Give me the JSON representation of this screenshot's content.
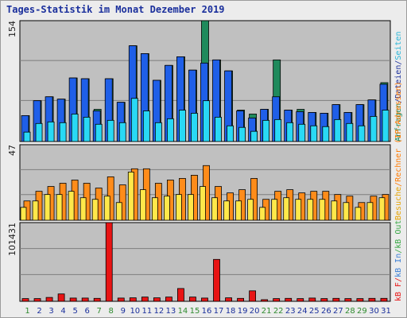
{
  "title": "Tages-Statistik im Monat Dezember 2019",
  "colors": {
    "background": "#ececec",
    "plot_bg": "#c0c0c0",
    "title": "#1a2f9c",
    "weekend_label": "#2e8b2e",
    "weekday_label": "#1a2f9c",
    "anfragen": "#1f8a5c",
    "dateien": "#1f5fe8",
    "seiten": "#29d9f5",
    "rechner": "#ff8c1a",
    "besuche": "#ffe84a",
    "kb_in": "#3b7fd6",
    "kb_out": "#39a845",
    "kb_f": "#e81414"
  },
  "right_labels": {
    "top": [
      {
        "text": "Anfragen",
        "color": "#1f8a5c"
      },
      {
        "text": "/",
        "color": "#1a2f9c"
      },
      {
        "text": "Dateien",
        "color": "#1a2f9c"
      },
      {
        "text": "/",
        "color": "#1a2f9c"
      },
      {
        "text": "Seiten",
        "color": "#29b6d9"
      }
    ],
    "middle": [
      {
        "text": "Besuche",
        "color": "#e6a300"
      },
      {
        "text": "/",
        "color": "#ff7a00"
      },
      {
        "text": "Rechner (IP-Adressen)",
        "color": "#ff7a00"
      }
    ],
    "bottom": [
      {
        "text": "kB F",
        "color": "#e81414"
      },
      {
        "text": "/",
        "color": "#e81414"
      },
      {
        "text": "kB In",
        "color": "#3b7fd6"
      },
      {
        "text": "/",
        "color": "#39a845"
      },
      {
        "text": "kB Out",
        "color": "#39a845"
      }
    ]
  },
  "chart_data": [
    {
      "type": "bar",
      "title": "Tages-Statistik im Monat Dezember 2019",
      "ylabel": "154",
      "ylim": [
        0,
        154
      ],
      "categories": [
        "1",
        "2",
        "3",
        "4",
        "5",
        "6",
        "7",
        "8",
        "9",
        "10",
        "11",
        "12",
        "13",
        "14",
        "15",
        "16",
        "17",
        "18",
        "19",
        "20",
        "21",
        "22",
        "23",
        "24",
        "25",
        "26",
        "27",
        "28",
        "29",
        "30",
        "31"
      ],
      "weekend_days": [
        "1",
        "7",
        "8",
        "14",
        "15",
        "21",
        "22",
        "28",
        "29"
      ],
      "series": [
        {
          "name": "Anfragen",
          "values": [
            33,
            52,
            57,
            54,
            81,
            80,
            41,
            80,
            50,
            122,
            112,
            78,
            97,
            108,
            91,
            154,
            104,
            90,
            40,
            35,
            41,
            104,
            40,
            41,
            37,
            36,
            47,
            37,
            47,
            53,
            75
          ]
        },
        {
          "name": "Dateien",
          "values": [
            33,
            52,
            57,
            54,
            81,
            80,
            39,
            80,
            50,
            122,
            112,
            78,
            97,
            108,
            91,
            100,
            104,
            90,
            39,
            30,
            41,
            57,
            40,
            38,
            37,
            36,
            47,
            37,
            47,
            53,
            73
          ]
        },
        {
          "name": "Seiten",
          "values": [
            12,
            23,
            25,
            24,
            35,
            31,
            22,
            27,
            24,
            55,
            39,
            24,
            29,
            40,
            36,
            52,
            31,
            20,
            18,
            13,
            27,
            28,
            24,
            22,
            20,
            19,
            28,
            23,
            20,
            32,
            40
          ]
        }
      ]
    },
    {
      "type": "bar",
      "ylabel": "47",
      "ylim": [
        0,
        47
      ],
      "categories": [
        "1",
        "2",
        "3",
        "4",
        "5",
        "6",
        "7",
        "8",
        "9",
        "10",
        "11",
        "12",
        "13",
        "14",
        "15",
        "16",
        "17",
        "18",
        "19",
        "20",
        "21",
        "22",
        "23",
        "24",
        "25",
        "26",
        "27",
        "28",
        "29",
        "30",
        "31"
      ],
      "series": [
        {
          "name": "Rechner (IP-Adressen)",
          "values": [
            12,
            18,
            21,
            23,
            25,
            23,
            20,
            27,
            22,
            32,
            32,
            23,
            25,
            26,
            28,
            34,
            21,
            17,
            19,
            26,
            13,
            18,
            19,
            17,
            18,
            18,
            16,
            15,
            11,
            15,
            16
          ]
        },
        {
          "name": "Besuche",
          "values": [
            8,
            12,
            16,
            16,
            18,
            14,
            13,
            15,
            11,
            30,
            19,
            14,
            15,
            16,
            16,
            21,
            14,
            12,
            12,
            13,
            8,
            13,
            14,
            13,
            13,
            13,
            12,
            11,
            8,
            11,
            14
          ]
        }
      ]
    },
    {
      "type": "bar",
      "ylabel": "101431",
      "ylim": [
        0,
        101431
      ],
      "categories": [
        "1",
        "2",
        "3",
        "4",
        "5",
        "6",
        "7",
        "8",
        "9",
        "10",
        "11",
        "12",
        "13",
        "14",
        "15",
        "16",
        "17",
        "18",
        "19",
        "20",
        "21",
        "22",
        "23",
        "24",
        "25",
        "26",
        "27",
        "28",
        "29",
        "30",
        "31"
      ],
      "series": [
        {
          "name": "kB F",
          "values": [
            3500,
            3500,
            5000,
            9500,
            4200,
            4200,
            3800,
            101431,
            4200,
            4500,
            5500,
            4500,
            5500,
            16500,
            5500,
            4200,
            54000,
            4500,
            3800,
            13500,
            2100,
            3500,
            3800,
            3500,
            4200,
            3500,
            3800,
            3500,
            3500,
            3800,
            3800
          ]
        }
      ]
    }
  ]
}
